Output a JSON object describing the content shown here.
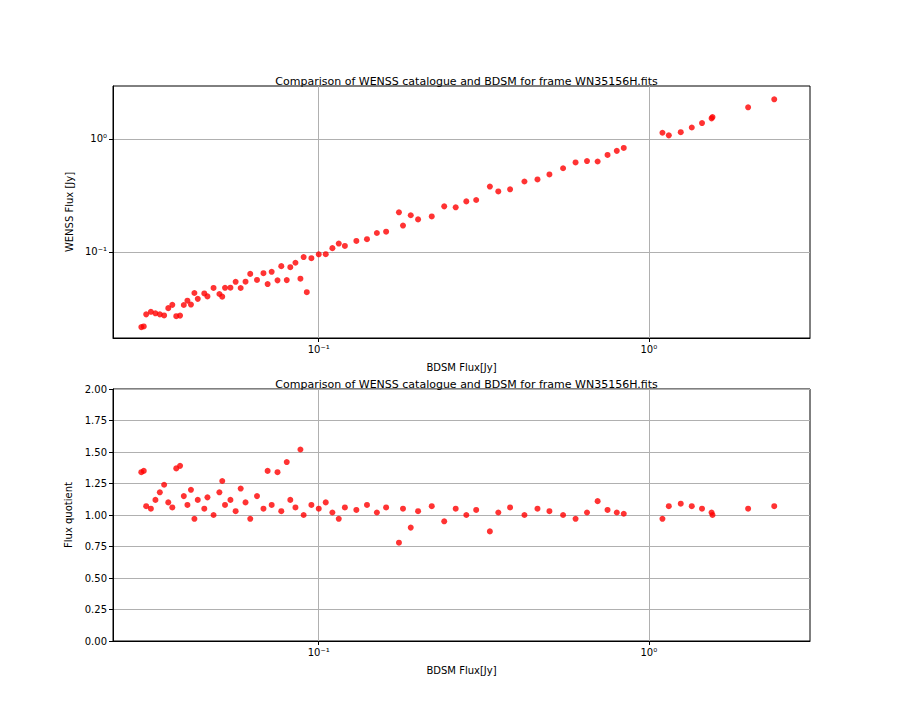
{
  "chart_data": [
    {
      "type": "scatter",
      "title": "Comparison of WENSS catalogue and BDSM for frame WN35156H.fits",
      "x_label": "BDSM Flux[Jy]",
      "y_label": "WENSS Flux [Jy]",
      "log": true,
      "grid": true,
      "color": "#ff0000",
      "marker": "circle",
      "xlim": [
        0.0238,
        3.08
      ],
      "ylim": [
        0.0173,
        2.94
      ],
      "xticks": [
        {
          "value": 0.1,
          "label": "10⁻¹"
        },
        {
          "value": 1,
          "label": "10⁰"
        }
      ],
      "yticks": [
        {
          "value": 0.1,
          "label": "10⁻¹"
        },
        {
          "value": 1,
          "label": "10⁰"
        }
      ],
      "x": [
        0.029,
        0.0295,
        0.03,
        0.031,
        0.032,
        0.033,
        0.034,
        0.035,
        0.036,
        0.037,
        0.038,
        0.039,
        0.04,
        0.041,
        0.042,
        0.043,
        0.045,
        0.046,
        0.048,
        0.05,
        0.051,
        0.052,
        0.054,
        0.056,
        0.058,
        0.06,
        0.062,
        0.065,
        0.068,
        0.07,
        0.072,
        0.075,
        0.077,
        0.08,
        0.082,
        0.085,
        0.088,
        0.09,
        0.092,
        0.095,
        0.1,
        0.105,
        0.11,
        0.115,
        0.12,
        0.13,
        0.14,
        0.15,
        0.16,
        0.175,
        0.18,
        0.19,
        0.2,
        0.22,
        0.24,
        0.26,
        0.28,
        0.3,
        0.33,
        0.35,
        0.38,
        0.42,
        0.46,
        0.5,
        0.55,
        0.6,
        0.65,
        0.7,
        0.75,
        0.8,
        0.84,
        1.1,
        1.15,
        1.25,
        1.35,
        1.45,
        1.55,
        1.56,
        2.0,
        2.4
      ],
      "values": [
        0.0216,
        0.0219,
        0.028,
        0.0295,
        0.0286,
        0.028,
        0.0274,
        0.0318,
        0.034,
        0.027,
        0.0273,
        0.0339,
        0.037,
        0.0342,
        0.0433,
        0.0384,
        0.0429,
        0.0404,
        0.048,
        0.0424,
        0.0402,
        0.0481,
        0.0482,
        0.0544,
        0.0479,
        0.0545,
        0.0639,
        0.0565,
        0.0648,
        0.0519,
        0.0667,
        0.056,
        0.0748,
        0.0563,
        0.0732,
        0.0802,
        0.0579,
        0.09,
        0.044,
        0.088,
        0.0952,
        0.0955,
        0.108,
        0.1186,
        0.113,
        0.125,
        0.1296,
        0.147,
        0.151,
        0.224,
        0.171,
        0.211,
        0.194,
        0.206,
        0.253,
        0.248,
        0.28,
        0.288,
        0.379,
        0.343,
        0.358,
        0.42,
        0.438,
        0.485,
        0.55,
        0.619,
        0.637,
        0.631,
        0.721,
        0.784,
        0.832,
        1.134,
        1.075,
        1.147,
        1.262,
        1.381,
        1.52,
        1.56,
        1.905,
        2.243
      ]
    },
    {
      "type": "scatter",
      "title": "Comparison of WENSS catalogue and BDSM for frame WN35156H.fits",
      "x_label": "BDSM Flux[Jy]",
      "y_label": "Flux quotient",
      "log": "x",
      "grid": true,
      "color": "#ff0000",
      "marker": "circle",
      "xlim": [
        0.0238,
        3.08
      ],
      "ylim": [
        0,
        2
      ],
      "xticks": [
        {
          "value": 0.1,
          "label": "10⁻¹"
        },
        {
          "value": 1,
          "label": "10⁰"
        }
      ],
      "yticks": [
        {
          "value": 0,
          "label": "0.00"
        },
        {
          "value": 0.25,
          "label": "0.25"
        },
        {
          "value": 0.5,
          "label": "0.50"
        },
        {
          "value": 0.75,
          "label": "0.75"
        },
        {
          "value": 1,
          "label": "1.00"
        },
        {
          "value": 1.25,
          "label": "1.25"
        },
        {
          "value": 1.5,
          "label": "1.50"
        },
        {
          "value": 1.75,
          "label": "1.75"
        },
        {
          "value": 2,
          "label": "2.00"
        }
      ],
      "x": [
        0.029,
        0.0295,
        0.03,
        0.031,
        0.032,
        0.033,
        0.034,
        0.035,
        0.036,
        0.037,
        0.038,
        0.039,
        0.04,
        0.041,
        0.042,
        0.043,
        0.045,
        0.046,
        0.048,
        0.05,
        0.051,
        0.052,
        0.054,
        0.056,
        0.058,
        0.06,
        0.062,
        0.065,
        0.068,
        0.07,
        0.072,
        0.075,
        0.077,
        0.08,
        0.082,
        0.085,
        0.088,
        0.09,
        0.095,
        0.1,
        0.105,
        0.11,
        0.115,
        0.12,
        0.13,
        0.14,
        0.15,
        0.16,
        0.175,
        0.18,
        0.19,
        0.2,
        0.22,
        0.24,
        0.26,
        0.28,
        0.3,
        0.33,
        0.35,
        0.38,
        0.42,
        0.46,
        0.5,
        0.55,
        0.6,
        0.65,
        0.7,
        0.75,
        0.8,
        0.84,
        1.1,
        1.15,
        1.25,
        1.35,
        1.45,
        1.55,
        1.56,
        2.0,
        2.4
      ],
      "values": [
        1.34,
        1.35,
        1.07,
        1.05,
        1.12,
        1.18,
        1.24,
        1.1,
        1.06,
        1.37,
        1.39,
        1.15,
        1.08,
        1.2,
        0.97,
        1.12,
        1.05,
        1.14,
        1.0,
        1.18,
        1.27,
        1.08,
        1.12,
        1.03,
        1.21,
        1.1,
        0.97,
        1.15,
        1.05,
        1.35,
        1.08,
        1.34,
        1.03,
        1.42,
        1.12,
        1.06,
        1.52,
        1.0,
        1.08,
        1.05,
        1.1,
        1.02,
        0.97,
        1.06,
        1.04,
        1.08,
        1.02,
        1.06,
        0.78,
        1.05,
        0.9,
        1.03,
        1.07,
        0.95,
        1.05,
        1.0,
        1.04,
        0.87,
        1.02,
        1.06,
        1.0,
        1.05,
        1.03,
        1.0,
        0.97,
        1.02,
        1.11,
        1.04,
        1.02,
        1.01,
        0.97,
        1.07,
        1.09,
        1.07,
        1.05,
        1.02,
        1.0,
        1.05,
        1.07
      ]
    }
  ]
}
